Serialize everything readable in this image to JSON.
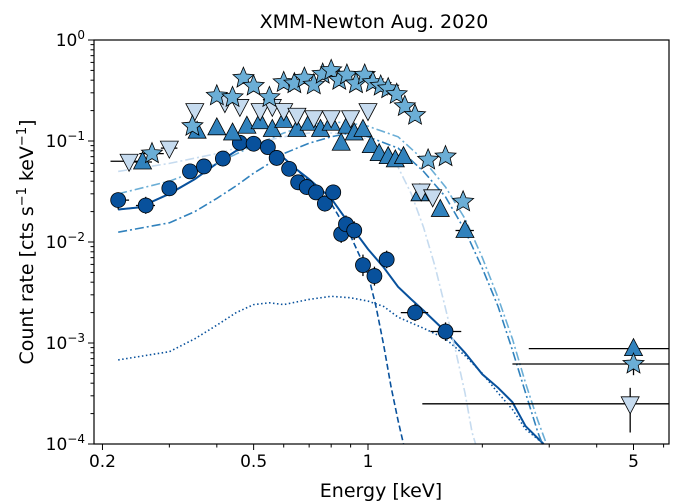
{
  "chart_data": {
    "type": "scatter",
    "title": "XMM-Newton Aug. 2020",
    "xlabel": "Energy [keV]",
    "ylabel_main": "Count rate [cts s",
    "ylabel_sup1": "−1",
    "ylabel_mid": " keV",
    "ylabel_sup2": "−1",
    "ylabel_end": "]",
    "x_scale": "log",
    "y_scale": "log",
    "xlim": [
      0.19,
      6.2
    ],
    "ylim": [
      0.0001,
      1.0
    ],
    "x_ticks": [
      {
        "value": 0.2,
        "label": "0.2"
      },
      {
        "value": 0.5,
        "label": "0.5"
      },
      {
        "value": 1,
        "label": "1"
      },
      {
        "value": 5,
        "label": "5"
      }
    ],
    "y_ticks": [
      {
        "value": 0.0001,
        "base": "10",
        "exp": "−4"
      },
      {
        "value": 0.001,
        "base": "10",
        "exp": "−3"
      },
      {
        "value": 0.01,
        "base": "10",
        "exp": "−2"
      },
      {
        "value": 0.1,
        "base": "10",
        "exp": "−1"
      },
      {
        "value": 1,
        "base": "10",
        "exp": "0"
      }
    ],
    "grid": false,
    "legend": "none",
    "series": [
      {
        "marker": "circle",
        "color": "#08519c",
        "points": [
          {
            "x": 0.22,
            "y": 0.026,
            "xlo": 0.21,
            "xhi": 0.235,
            "ylo": 0.021,
            "yhi": 0.031
          },
          {
            "x": 0.26,
            "y": 0.023,
            "xlo": 0.245,
            "xhi": 0.275,
            "ylo": 0.019,
            "yhi": 0.028
          },
          {
            "x": 0.3,
            "y": 0.034,
            "ylo": 0.029,
            "yhi": 0.04
          },
          {
            "x": 0.34,
            "y": 0.05,
            "ylo": 0.043,
            "yhi": 0.058
          },
          {
            "x": 0.37,
            "y": 0.056,
            "ylo": 0.049,
            "yhi": 0.064
          },
          {
            "x": 0.415,
            "y": 0.067,
            "ylo": 0.059,
            "yhi": 0.076
          },
          {
            "x": 0.46,
            "y": 0.096,
            "ylo": 0.085,
            "yhi": 0.108
          },
          {
            "x": 0.5,
            "y": 0.094,
            "ylo": 0.083,
            "yhi": 0.106
          },
          {
            "x": 0.545,
            "y": 0.087,
            "ylo": 0.077,
            "yhi": 0.098
          },
          {
            "x": 0.575,
            "y": 0.068,
            "ylo": 0.06,
            "yhi": 0.077
          },
          {
            "x": 0.62,
            "y": 0.053,
            "ylo": 0.046,
            "yhi": 0.061
          },
          {
            "x": 0.655,
            "y": 0.039,
            "ylo": 0.033,
            "yhi": 0.046
          },
          {
            "x": 0.69,
            "y": 0.035,
            "ylo": 0.03,
            "yhi": 0.041
          },
          {
            "x": 0.73,
            "y": 0.031,
            "ylo": 0.026,
            "yhi": 0.037
          },
          {
            "x": 0.77,
            "y": 0.024,
            "ylo": 0.02,
            "yhi": 0.029
          },
          {
            "x": 0.81,
            "y": 0.031,
            "ylo": 0.026,
            "yhi": 0.037
          },
          {
            "x": 0.85,
            "y": 0.012,
            "ylo": 0.0098,
            "yhi": 0.0148
          },
          {
            "x": 0.875,
            "y": 0.015,
            "ylo": 0.0123,
            "yhi": 0.0183
          },
          {
            "x": 0.92,
            "y": 0.013,
            "ylo": 0.0105,
            "yhi": 0.016
          },
          {
            "x": 0.97,
            "y": 0.0059,
            "ylo": 0.0046,
            "yhi": 0.0075
          },
          {
            "x": 1.04,
            "y": 0.0046,
            "ylo": 0.0037,
            "yhi": 0.0057
          },
          {
            "x": 1.12,
            "y": 0.0067,
            "ylo": 0.0055,
            "yhi": 0.0082
          },
          {
            "x": 1.33,
            "y": 0.002,
            "xlo": 1.22,
            "xhi": 1.44,
            "ylo": 0.00165,
            "yhi": 0.00245
          },
          {
            "x": 1.6,
            "y": 0.0013,
            "xlo": 1.46,
            "xhi": 1.76,
            "ylo": 0.00105,
            "yhi": 0.0016
          }
        ]
      },
      {
        "marker": "triangle-up",
        "color": "#3182bd",
        "points": [
          {
            "x": 0.255,
            "y": 0.062,
            "xlo": 0.24,
            "xhi": 0.27
          },
          {
            "x": 0.355,
            "y": 0.125
          },
          {
            "x": 0.4,
            "y": 0.135
          },
          {
            "x": 0.44,
            "y": 0.12
          },
          {
            "x": 0.48,
            "y": 0.14
          },
          {
            "x": 0.52,
            "y": 0.155
          },
          {
            "x": 0.56,
            "y": 0.13
          },
          {
            "x": 0.6,
            "y": 0.16
          },
          {
            "x": 0.65,
            "y": 0.13
          },
          {
            "x": 0.7,
            "y": 0.15
          },
          {
            "x": 0.75,
            "y": 0.13
          },
          {
            "x": 0.8,
            "y": 0.15
          },
          {
            "x": 0.85,
            "y": 0.095
          },
          {
            "x": 0.88,
            "y": 0.14
          },
          {
            "x": 0.92,
            "y": 0.12
          },
          {
            "x": 0.97,
            "y": 0.13
          },
          {
            "x": 1.02,
            "y": 0.09
          },
          {
            "x": 1.07,
            "y": 0.075
          },
          {
            "x": 1.13,
            "y": 0.07
          },
          {
            "x": 1.18,
            "y": 0.065
          },
          {
            "x": 1.24,
            "y": 0.07
          },
          {
            "x": 1.37,
            "y": 0.03
          },
          {
            "x": 1.55,
            "y": 0.021
          },
          {
            "x": 1.8,
            "y": 0.013,
            "xlo": 1.7,
            "xhi": 1.9
          },
          {
            "x": 5.0,
            "y": 0.00088,
            "xlo": 2.65,
            "xhi": 6.2,
            "ylo": 0.00072,
            "yhi": 0.00105
          }
        ]
      },
      {
        "marker": "triangle-down",
        "color": "#c6dbef",
        "points": [
          {
            "x": 0.235,
            "y": 0.063,
            "xlo": 0.21,
            "xhi": 0.255
          },
          {
            "x": 0.3,
            "y": 0.085,
            "xlo": 0.285,
            "xhi": 0.315
          },
          {
            "x": 0.35,
            "y": 0.2
          },
          {
            "x": 0.42,
            "y": 0.24
          },
          {
            "x": 0.46,
            "y": 0.22
          },
          {
            "x": 0.52,
            "y": 0.2
          },
          {
            "x": 0.56,
            "y": 0.22
          },
          {
            "x": 0.6,
            "y": 0.2
          },
          {
            "x": 0.65,
            "y": 0.18
          },
          {
            "x": 0.72,
            "y": 0.17
          },
          {
            "x": 0.8,
            "y": 0.17
          },
          {
            "x": 0.9,
            "y": 0.17
          },
          {
            "x": 1.0,
            "y": 0.2
          },
          {
            "x": 1.38,
            "y": 0.032
          },
          {
            "x": 1.48,
            "y": 0.028
          },
          {
            "x": 4.9,
            "y": 0.00025,
            "xlo": 1.39,
            "xhi": 6.2,
            "ylo": 0.00013,
            "yhi": 0.00036
          }
        ]
      },
      {
        "marker": "star",
        "color": "#6baed6",
        "points": [
          {
            "x": 0.27,
            "y": 0.075,
            "xlo": 0.25,
            "xhi": 0.29
          },
          {
            "x": 0.345,
            "y": 0.14
          },
          {
            "x": 0.4,
            "y": 0.28
          },
          {
            "x": 0.44,
            "y": 0.27
          },
          {
            "x": 0.47,
            "y": 0.42
          },
          {
            "x": 0.5,
            "y": 0.35
          },
          {
            "x": 0.55,
            "y": 0.27
          },
          {
            "x": 0.6,
            "y": 0.38
          },
          {
            "x": 0.64,
            "y": 0.37
          },
          {
            "x": 0.68,
            "y": 0.42
          },
          {
            "x": 0.72,
            "y": 0.36
          },
          {
            "x": 0.76,
            "y": 0.46
          },
          {
            "x": 0.8,
            "y": 0.5
          },
          {
            "x": 0.84,
            "y": 0.4
          },
          {
            "x": 0.88,
            "y": 0.45
          },
          {
            "x": 0.93,
            "y": 0.37
          },
          {
            "x": 0.98,
            "y": 0.45
          },
          {
            "x": 1.03,
            "y": 0.38
          },
          {
            "x": 1.08,
            "y": 0.35
          },
          {
            "x": 1.13,
            "y": 0.33
          },
          {
            "x": 1.19,
            "y": 0.29
          },
          {
            "x": 1.25,
            "y": 0.22
          },
          {
            "x": 1.33,
            "y": 0.18
          },
          {
            "x": 1.44,
            "y": 0.065
          },
          {
            "x": 1.6,
            "y": 0.07
          },
          {
            "x": 1.78,
            "y": 0.025
          },
          {
            "x": 5.0,
            "y": 0.00062,
            "xlo": 2.4,
            "xhi": 6.2,
            "ylo": 0.00048,
            "yhi": 0.00076
          }
        ]
      }
    ],
    "model_curves": [
      {
        "style": "solid",
        "color": "#08519c",
        "points": [
          [
            0.22,
            0.021
          ],
          [
            0.25,
            0.022
          ],
          [
            0.3,
            0.03
          ],
          [
            0.35,
            0.042
          ],
          [
            0.4,
            0.06
          ],
          [
            0.45,
            0.08
          ],
          [
            0.5,
            0.092
          ],
          [
            0.55,
            0.085
          ],
          [
            0.6,
            0.068
          ],
          [
            0.65,
            0.052
          ],
          [
            0.7,
            0.042
          ],
          [
            0.8,
            0.027
          ],
          [
            0.9,
            0.0145
          ],
          [
            1.0,
            0.0085
          ],
          [
            1.1,
            0.0056
          ],
          [
            1.2,
            0.0036
          ],
          [
            1.3,
            0.0027
          ],
          [
            1.4,
            0.0021
          ],
          [
            1.6,
            0.0013
          ],
          [
            1.8,
            0.0008
          ],
          [
            2.0,
            0.00049
          ],
          [
            2.2,
            0.00036
          ],
          [
            2.4,
            0.00026
          ],
          [
            2.6,
            0.00015
          ],
          [
            2.9,
            0.0001
          ]
        ]
      },
      {
        "style": "dashed",
        "color": "#08519c",
        "points": [
          [
            0.22,
            0.021
          ],
          [
            0.25,
            0.022
          ],
          [
            0.3,
            0.03
          ],
          [
            0.35,
            0.042
          ],
          [
            0.4,
            0.06
          ],
          [
            0.45,
            0.08
          ],
          [
            0.5,
            0.092
          ],
          [
            0.55,
            0.085
          ],
          [
            0.6,
            0.068
          ],
          [
            0.65,
            0.052
          ],
          [
            0.7,
            0.04
          ],
          [
            0.8,
            0.024
          ],
          [
            0.9,
            0.0115
          ],
          [
            1.0,
            0.0048
          ],
          [
            1.05,
            0.0023
          ],
          [
            1.1,
            0.00095
          ],
          [
            1.15,
            0.00037
          ],
          [
            1.2,
            0.00017
          ],
          [
            1.24,
            0.0001
          ]
        ]
      },
      {
        "style": "dotted",
        "color": "#08519c",
        "points": [
          [
            0.22,
            0.00068
          ],
          [
            0.3,
            0.00082
          ],
          [
            0.35,
            0.0011
          ],
          [
            0.4,
            0.0015
          ],
          [
            0.45,
            0.002
          ],
          [
            0.5,
            0.0024
          ],
          [
            0.55,
            0.0025
          ],
          [
            0.6,
            0.0024
          ],
          [
            0.7,
            0.0027
          ],
          [
            0.8,
            0.0029
          ],
          [
            0.9,
            0.0028
          ],
          [
            1.0,
            0.0026
          ],
          [
            1.1,
            0.0023
          ],
          [
            1.2,
            0.0018
          ],
          [
            1.4,
            0.0014
          ],
          [
            1.6,
            0.0011
          ],
          [
            1.8,
            0.00075
          ],
          [
            2.0,
            0.0005
          ],
          [
            2.2,
            0.00032
          ],
          [
            2.4,
            0.00022
          ],
          [
            2.6,
            0.00014
          ],
          [
            2.9,
            0.0001
          ]
        ]
      },
      {
        "style": "dashdot",
        "color": "#3182bd",
        "points": [
          [
            0.22,
            0.0125
          ],
          [
            0.3,
            0.0155
          ],
          [
            0.35,
            0.02
          ],
          [
            0.4,
            0.027
          ],
          [
            0.45,
            0.036
          ],
          [
            0.5,
            0.048
          ],
          [
            0.55,
            0.06
          ],
          [
            0.6,
            0.075
          ],
          [
            0.7,
            0.095
          ],
          [
            0.8,
            0.11
          ],
          [
            0.9,
            0.12
          ],
          [
            1.0,
            0.11
          ],
          [
            1.2,
            0.085
          ],
          [
            1.4,
            0.05
          ],
          [
            1.6,
            0.028
          ],
          [
            1.8,
            0.013
          ],
          [
            2.0,
            0.0055
          ],
          [
            2.2,
            0.0023
          ],
          [
            2.4,
            0.00085
          ],
          [
            2.6,
            0.00032
          ],
          [
            2.8,
            0.00013
          ],
          [
            2.88,
            0.0001
          ]
        ]
      },
      {
        "style": "dashdot",
        "color": "#6baed6",
        "points": [
          [
            0.22,
            0.03
          ],
          [
            0.3,
            0.04
          ],
          [
            0.4,
            0.06
          ],
          [
            0.5,
            0.09
          ],
          [
            0.6,
            0.12
          ],
          [
            0.7,
            0.145
          ],
          [
            0.8,
            0.155
          ],
          [
            0.9,
            0.15
          ],
          [
            1.0,
            0.14
          ],
          [
            1.2,
            0.11
          ],
          [
            1.4,
            0.065
          ],
          [
            1.6,
            0.035
          ],
          [
            1.8,
            0.017
          ],
          [
            2.0,
            0.007
          ],
          [
            2.2,
            0.0028
          ],
          [
            2.4,
            0.0011
          ],
          [
            2.6,
            0.0004
          ],
          [
            2.8,
            0.00017
          ],
          [
            2.95,
            0.0001
          ]
        ]
      },
      {
        "style": "dashdot",
        "color": "#c6dbef",
        "points": [
          [
            0.22,
            0.05
          ],
          [
            0.3,
            0.06
          ],
          [
            0.4,
            0.075
          ],
          [
            0.5,
            0.095
          ],
          [
            0.6,
            0.11
          ],
          [
            0.7,
            0.12
          ],
          [
            0.8,
            0.12
          ],
          [
            0.9,
            0.115
          ],
          [
            1.0,
            0.105
          ],
          [
            1.1,
            0.08
          ],
          [
            1.2,
            0.055
          ],
          [
            1.3,
            0.03
          ],
          [
            1.4,
            0.014
          ],
          [
            1.5,
            0.0058
          ],
          [
            1.6,
            0.0022
          ],
          [
            1.7,
            0.00085
          ],
          [
            1.8,
            0.00032
          ],
          [
            1.88,
            0.00013
          ],
          [
            1.92,
            0.0001
          ]
        ]
      }
    ]
  }
}
